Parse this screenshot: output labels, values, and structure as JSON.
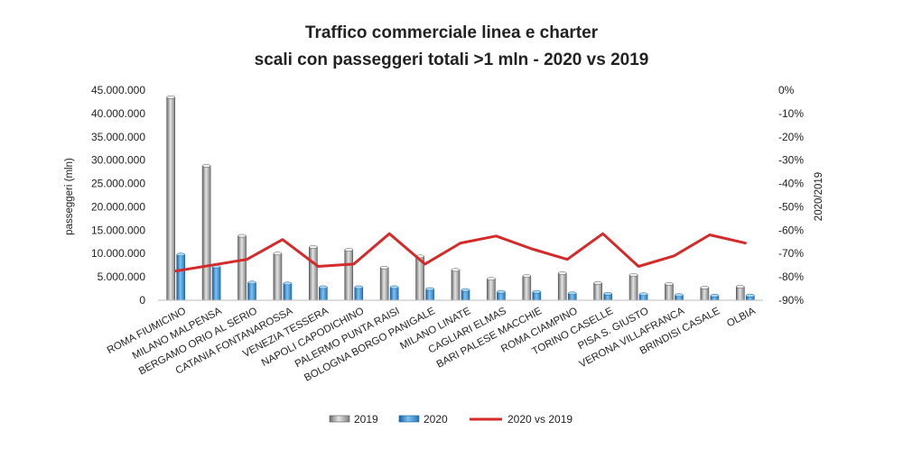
{
  "chart_data": {
    "type": "bar",
    "title": "Traffico commerciale linea e charter",
    "subtitle": "scali con passeggeri totali >1 mln - 2020 vs 2019",
    "ylabel": "passeggeri (mln)",
    "y2label": "2020/2019",
    "ylim": [
      0,
      45000000
    ],
    "y2lim": [
      -90,
      0
    ],
    "yticks": [
      "45.000.000",
      "40.000.000",
      "35.000.000",
      "30.000.000",
      "25.000.000",
      "20.000.000",
      "15.000.000",
      "10.000.000",
      "5.000.000",
      "0"
    ],
    "y2ticks": [
      "0%",
      "-10%",
      "-20%",
      "-30%",
      "-40%",
      "-50%",
      "-60%",
      "-70%",
      "-80%",
      "-90%"
    ],
    "categories": [
      "ROMA FIUMICINO",
      "MILANO MALPENSA",
      "BERGAMO ORIO AL SERIO",
      "CATANIA FONTANAROSSA",
      "VENEZIA TESSERA",
      "NAPOLI CAPODICHINO",
      "PALERMO PUNTA RAISI",
      "BOLOGNA BORGO PANIGALE",
      "MILANO LINATE",
      "CAGLIARI ELMAS",
      "BARI PALESE MACCHIE",
      "ROMA CIAMPINO",
      "TORINO CASELLE",
      "PISA S. GIUSTO",
      "VERONA VILLAFRANCA",
      "BRINDISI CASALE",
      "OLBIA"
    ],
    "series": [
      {
        "name": "2019",
        "kind": "bar",
        "axis": "left",
        "color": "#9e9e9e",
        "values": [
          43500000,
          28800000,
          13800000,
          10000000,
          11400000,
          10800000,
          7000000,
          9400000,
          6500000,
          4600000,
          5200000,
          5800000,
          3700000,
          5400000,
          3500000,
          2700000,
          2900000
        ]
      },
      {
        "name": "2020",
        "kind": "bar",
        "axis": "left",
        "color": "#3a8fd6",
        "values": [
          9800000,
          7200000,
          3800000,
          3600000,
          2800000,
          2800000,
          2800000,
          2400000,
          2200000,
          1800000,
          1800000,
          1500000,
          1400000,
          1300000,
          1100000,
          1000000,
          1000000
        ]
      },
      {
        "name": "2020 vs 2019",
        "kind": "line",
        "axis": "right",
        "color": "#d42a2a",
        "values": [
          -77.5,
          -75,
          -72.5,
          -64,
          -75.5,
          -74.5,
          -61.5,
          -74.5,
          -65.5,
          -62.5,
          -68,
          -72.5,
          -61.5,
          -75.5,
          -71,
          -62,
          -65.5
        ]
      }
    ],
    "grid": false,
    "legend_position": "bottom"
  }
}
